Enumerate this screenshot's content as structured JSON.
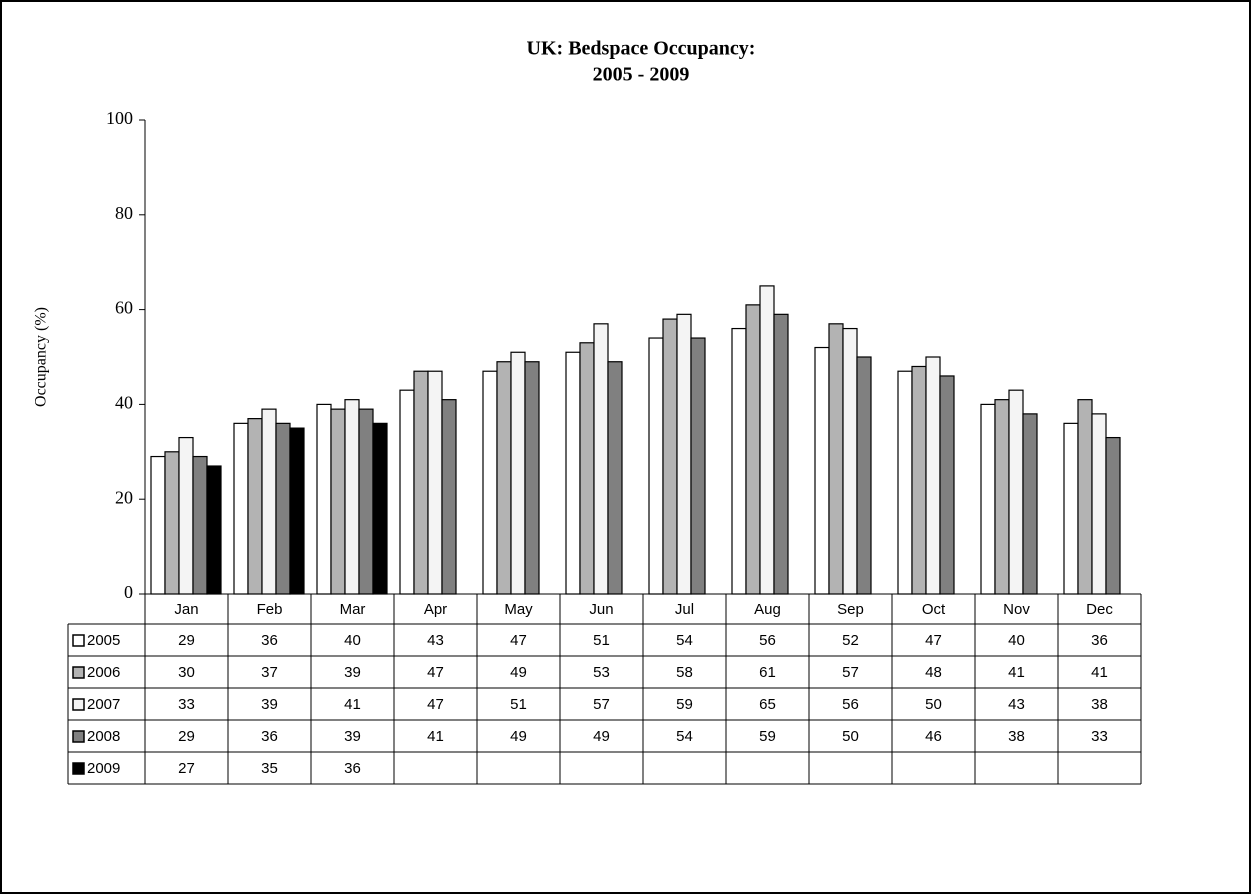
{
  "chart_data": {
    "type": "bar",
    "title": [
      "UK: Bedspace Occupancy:",
      "2005 - 2009"
    ],
    "y_label": "Occupancy (%)",
    "categories": [
      "Jan",
      "Feb",
      "Mar",
      "Apr",
      "May",
      "Jun",
      "Jul",
      "Aug",
      "Sep",
      "Oct",
      "Nov",
      "Dec"
    ],
    "series": [
      {
        "name": "2005",
        "color": "#ffffff",
        "values": [
          29,
          36,
          40,
          43,
          47,
          51,
          54,
          56,
          52,
          47,
          40,
          36
        ]
      },
      {
        "name": "2006",
        "color": "#b3b3b3",
        "values": [
          30,
          37,
          39,
          47,
          49,
          53,
          58,
          61,
          57,
          48,
          41,
          41
        ]
      },
      {
        "name": "2007",
        "color": "#f4f4f4",
        "values": [
          33,
          39,
          41,
          47,
          51,
          57,
          59,
          65,
          56,
          50,
          43,
          38
        ]
      },
      {
        "name": "2008",
        "color": "#808080",
        "values": [
          29,
          36,
          39,
          41,
          49,
          49,
          54,
          59,
          50,
          46,
          38,
          33
        ]
      },
      {
        "name": "2009",
        "color": "#000000",
        "values": [
          27,
          35,
          36,
          null,
          null,
          null,
          null,
          null,
          null,
          null,
          null,
          null
        ]
      }
    ],
    "ylim": [
      0,
      100
    ],
    "yticks": [
      0,
      20,
      40,
      60,
      80,
      100
    ],
    "data_table": true
  }
}
